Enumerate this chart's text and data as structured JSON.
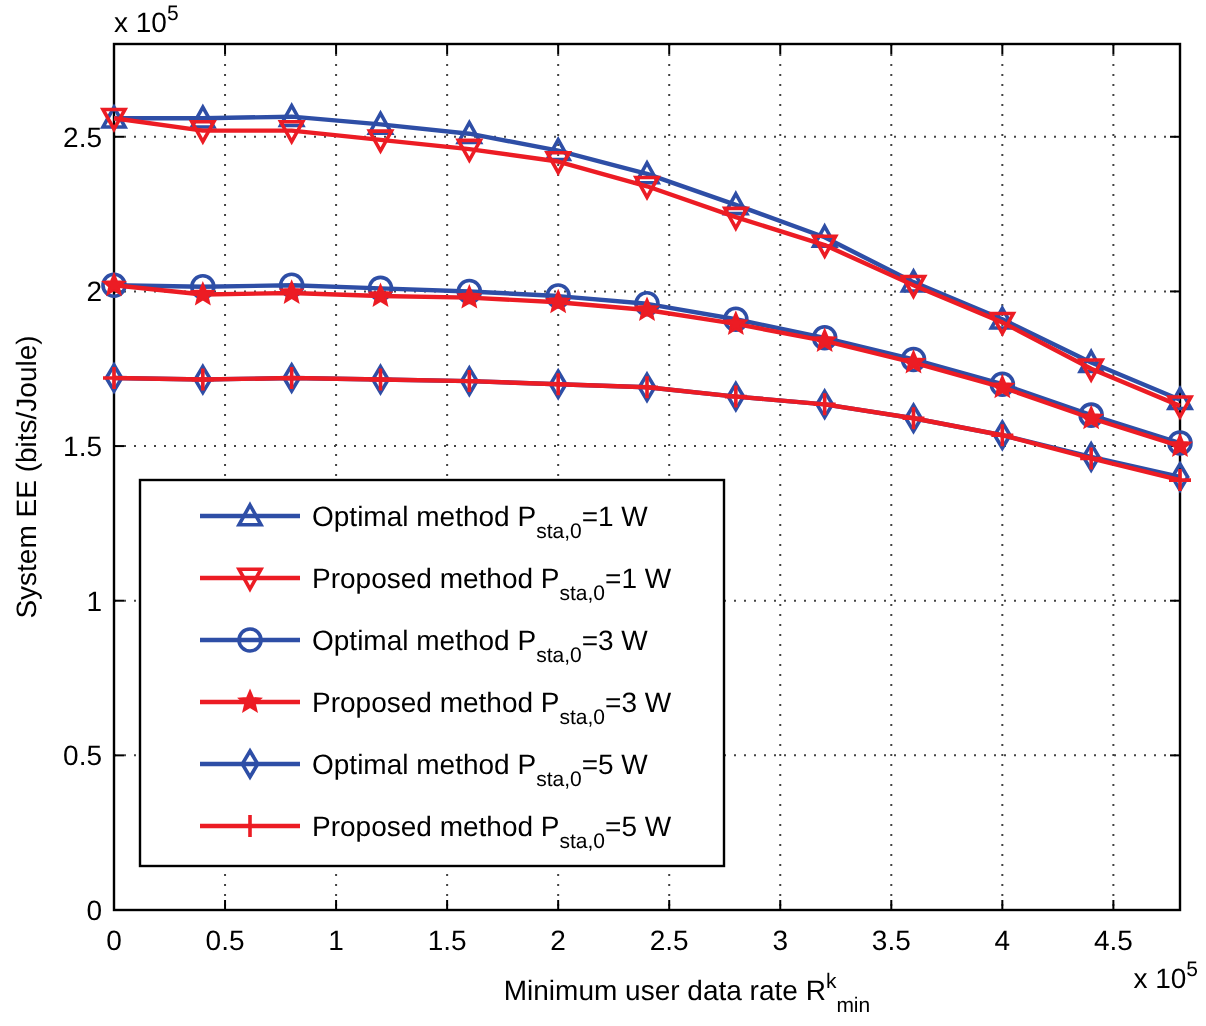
{
  "chart_data": {
    "type": "line",
    "xlabel": "Minimum user data rate R$^{k}$$_{min}$",
    "ylabel": "System EE (bits/Joule)",
    "annotations": [
      "x 10$^{5}$",
      "x 10$^{5}$"
    ],
    "x": [
      0,
      0.4,
      0.8,
      1.2,
      1.6,
      2.0,
      2.4,
      2.8,
      3.2,
      3.6,
      4.0,
      4.4,
      4.8
    ],
    "series": [
      {
        "name": "Optimal method P$_{sta,0}$=1 W",
        "color": "#2e4ea6",
        "marker": "triangle",
        "values": [
          2.56,
          2.56,
          2.565,
          2.54,
          2.51,
          2.455,
          2.38,
          2.28,
          2.175,
          2.03,
          1.91,
          1.77,
          1.65
        ]
      },
      {
        "name": "Proposed method P$_{sta,0}$=1 W",
        "color": "#ec1c24",
        "marker": "triangle-down",
        "values": [
          2.56,
          2.52,
          2.52,
          2.49,
          2.46,
          2.42,
          2.34,
          2.24,
          2.15,
          2.02,
          1.9,
          1.75,
          1.63
        ]
      },
      {
        "name": "Optimal method P$_{sta,0}$=3 W",
        "color": "#2e4ea6",
        "marker": "circle",
        "values": [
          2.02,
          2.015,
          2.02,
          2.01,
          2.0,
          1.985,
          1.96,
          1.91,
          1.85,
          1.78,
          1.7,
          1.6,
          1.51
        ]
      },
      {
        "name": "Proposed method P$_{sta,0}$=3 W",
        "color": "#ec1c24",
        "marker": "star",
        "values": [
          2.02,
          1.99,
          1.995,
          1.985,
          1.98,
          1.965,
          1.94,
          1.895,
          1.84,
          1.77,
          1.69,
          1.59,
          1.5
        ]
      },
      {
        "name": "Optimal method P$_{sta,0}$=5 W",
        "color": "#2e4ea6",
        "marker": "diamond",
        "values": [
          1.72,
          1.715,
          1.72,
          1.715,
          1.71,
          1.7,
          1.69,
          1.66,
          1.635,
          1.59,
          1.535,
          1.465,
          1.4
        ]
      },
      {
        "name": "Proposed method P$_{sta,0}$=5 W",
        "color": "#ec1c24",
        "marker": "cross",
        "values": [
          1.72,
          1.715,
          1.72,
          1.715,
          1.71,
          1.7,
          1.69,
          1.66,
          1.635,
          1.59,
          1.535,
          1.46,
          1.39
        ]
      }
    ],
    "xlim": [
      0,
      4.8
    ],
    "xticks": [
      0,
      0.5,
      1,
      1.5,
      2,
      2.5,
      3,
      3.5,
      4,
      4.5
    ],
    "ylim": [
      0,
      2.8
    ],
    "yticks": [
      0,
      0.5,
      1,
      1.5,
      2,
      2.5
    ],
    "grid": true,
    "legend": "bottom left",
    "line_style": "solid"
  }
}
